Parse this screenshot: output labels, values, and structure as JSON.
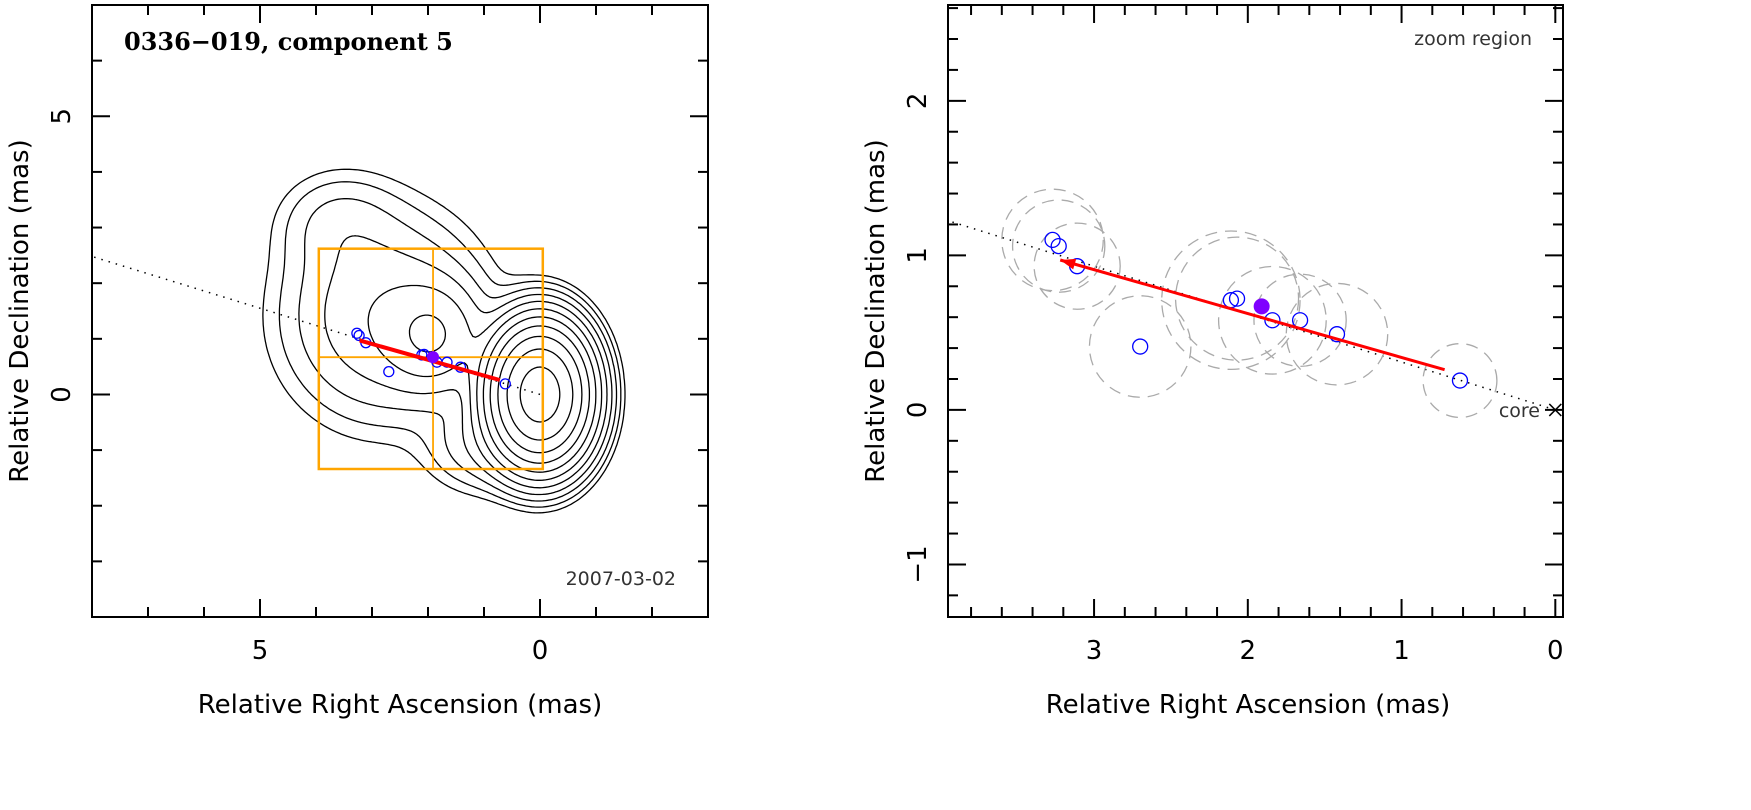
{
  "chart_data": [
    {
      "type": "contour",
      "title": "0336−019, component 5",
      "annotation": "2007-03-02",
      "xlabel": "Relative Right Ascension (mas)",
      "ylabel": "Relative Declination (mas)",
      "xlim": [
        8,
        -3
      ],
      "ylim": [
        -4,
        7
      ],
      "xticks": [
        {
          "v": 5,
          "label": "5"
        },
        {
          "v": 0,
          "label": "0"
        }
      ],
      "yticks": [
        {
          "v": 5,
          "label": "5"
        },
        {
          "v": 0,
          "label": "0"
        }
      ],
      "zoom_box": {
        "x": [
          3.95,
          -0.05
        ],
        "y": [
          -1.34,
          2.62
        ],
        "cross": [
          1.91,
          0.67
        ]
      },
      "colors": {
        "contour": "#000000",
        "points": "#0000ff",
        "current": "#7f00ff",
        "arrow": "#ff0000",
        "box": "#ffa500"
      }
    },
    {
      "type": "scatter",
      "title": "zoom region",
      "core_label": "core",
      "xlabel": "Relative Right Ascension (mas)",
      "ylabel": "Relative Declination (mas)",
      "xlim": [
        3.95,
        -0.05
      ],
      "ylim": [
        -1.34,
        2.62
      ],
      "xticks": [
        {
          "v": 3,
          "label": "3"
        },
        {
          "v": 2,
          "label": "2"
        },
        {
          "v": 1,
          "label": "1"
        },
        {
          "v": 0,
          "label": "0"
        }
      ],
      "yticks": [
        {
          "v": 2,
          "label": "2"
        },
        {
          "v": 1,
          "label": "1"
        },
        {
          "v": 0,
          "label": "0"
        },
        {
          "v": -1,
          "label": "−1"
        }
      ],
      "points": [
        {
          "x": 3.27,
          "y": 1.1,
          "size": 0.33
        },
        {
          "x": 3.23,
          "y": 1.06,
          "size": 0.3
        },
        {
          "x": 3.11,
          "y": 0.93,
          "size": 0.28
        },
        {
          "x": 2.7,
          "y": 0.41,
          "size": 0.33
        },
        {
          "x": 2.11,
          "y": 0.71,
          "size": 0.45
        },
        {
          "x": 2.07,
          "y": 0.72,
          "size": 0.4
        },
        {
          "x": 1.84,
          "y": 0.58,
          "size": 0.35
        },
        {
          "x": 1.66,
          "y": 0.58,
          "size": 0.3
        },
        {
          "x": 1.42,
          "y": 0.49,
          "size": 0.33
        },
        {
          "x": 0.62,
          "y": 0.19,
          "size": 0.24
        }
      ],
      "current_point": {
        "x": 1.91,
        "y": 0.67
      },
      "arrow": {
        "from": [
          0.72,
          0.26
        ],
        "to": [
          3.22,
          0.97
        ]
      },
      "jet_axis_slope": 0.31,
      "core": {
        "x": 0,
        "y": 0
      }
    }
  ]
}
